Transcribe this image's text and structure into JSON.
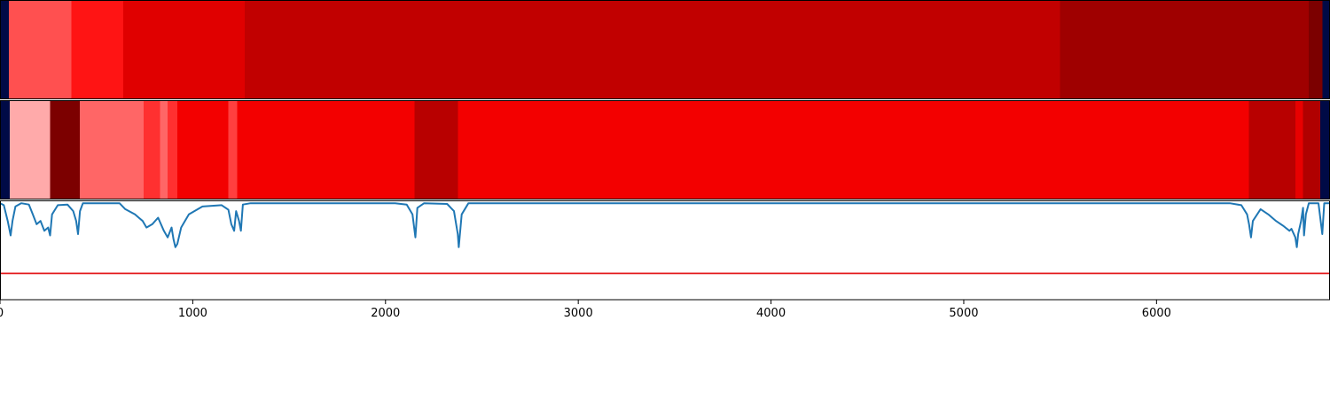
{
  "chart_data": {
    "type": "heatmap",
    "x_range": [
      0,
      6900
    ],
    "x_ticks": [
      {
        "value": 0,
        "label": "0"
      },
      {
        "value": 1000,
        "label": "1000"
      },
      {
        "value": 2000,
        "label": "2000"
      },
      {
        "value": 3000,
        "label": "3000"
      },
      {
        "value": 4000,
        "label": "4000"
      },
      {
        "value": 5000,
        "label": "5000"
      },
      {
        "value": 6000,
        "label": "6000"
      }
    ],
    "colors": {
      "background_edge": "#000a46",
      "line": "#1f77b4",
      "threshold": "#e31a1c",
      "frame": "#000000"
    },
    "tracks": [
      {
        "segments": [
          {
            "start": 0,
            "end": 45,
            "color": "#000a46"
          },
          {
            "start": 45,
            "end": 370,
            "color": "#ff5050"
          },
          {
            "start": 370,
            "end": 640,
            "color": "#ff1414"
          },
          {
            "start": 640,
            "end": 1270,
            "color": "#e00000"
          },
          {
            "start": 1270,
            "end": 5500,
            "color": "#c10000"
          },
          {
            "start": 5500,
            "end": 6790,
            "color": "#9f0000"
          },
          {
            "start": 6790,
            "end": 6860,
            "color": "#7c0000"
          },
          {
            "start": 6860,
            "end": 6900,
            "color": "#000a46"
          }
        ]
      },
      {
        "segments": [
          {
            "start": 0,
            "end": 50,
            "color": "#000a46"
          },
          {
            "start": 50,
            "end": 260,
            "color": "#ffaaaa"
          },
          {
            "start": 260,
            "end": 415,
            "color": "#7c0000"
          },
          {
            "start": 415,
            "end": 745,
            "color": "#ff6666"
          },
          {
            "start": 745,
            "end": 830,
            "color": "#ff3030"
          },
          {
            "start": 830,
            "end": 870,
            "color": "#ff6666"
          },
          {
            "start": 870,
            "end": 920,
            "color": "#ff3030"
          },
          {
            "start": 920,
            "end": 1185,
            "color": "#f30000"
          },
          {
            "start": 1185,
            "end": 1230,
            "color": "#ff3f3f"
          },
          {
            "start": 1230,
            "end": 2150,
            "color": "#f30000"
          },
          {
            "start": 2150,
            "end": 2375,
            "color": "#b80000"
          },
          {
            "start": 2375,
            "end": 6480,
            "color": "#f30000"
          },
          {
            "start": 6480,
            "end": 6720,
            "color": "#b80000"
          },
          {
            "start": 6720,
            "end": 6760,
            "color": "#e80000"
          },
          {
            "start": 6760,
            "end": 6850,
            "color": "#b00000"
          },
          {
            "start": 6850,
            "end": 6900,
            "color": "#000a46"
          }
        ]
      }
    ],
    "line_panel": {
      "y_range": [
        0,
        1.5
      ],
      "threshold": 0.4,
      "points": [
        [
          0,
          1.47
        ],
        [
          20,
          1.44
        ],
        [
          40,
          1.2
        ],
        [
          55,
          0.98
        ],
        [
          65,
          1.2
        ],
        [
          80,
          1.42
        ],
        [
          110,
          1.47
        ],
        [
          150,
          1.45
        ],
        [
          170,
          1.3
        ],
        [
          190,
          1.15
        ],
        [
          210,
          1.2
        ],
        [
          230,
          1.05
        ],
        [
          250,
          1.1
        ],
        [
          260,
          0.98
        ],
        [
          270,
          1.3
        ],
        [
          300,
          1.44
        ],
        [
          350,
          1.45
        ],
        [
          380,
          1.35
        ],
        [
          395,
          1.2
        ],
        [
          405,
          1.0
        ],
        [
          415,
          1.35
        ],
        [
          430,
          1.47
        ],
        [
          620,
          1.47
        ],
        [
          650,
          1.38
        ],
        [
          700,
          1.3
        ],
        [
          720,
          1.25
        ],
        [
          740,
          1.2
        ],
        [
          760,
          1.1
        ],
        [
          790,
          1.15
        ],
        [
          820,
          1.25
        ],
        [
          850,
          1.05
        ],
        [
          870,
          0.95
        ],
        [
          890,
          1.1
        ],
        [
          900,
          0.92
        ],
        [
          910,
          0.8
        ],
        [
          920,
          0.85
        ],
        [
          940,
          1.1
        ],
        [
          980,
          1.3
        ],
        [
          1050,
          1.42
        ],
        [
          1150,
          1.44
        ],
        [
          1185,
          1.37
        ],
        [
          1200,
          1.15
        ],
        [
          1215,
          1.05
        ],
        [
          1225,
          1.35
        ],
        [
          1240,
          1.2
        ],
        [
          1250,
          1.05
        ],
        [
          1260,
          1.45
        ],
        [
          1300,
          1.47
        ],
        [
          2050,
          1.47
        ],
        [
          2110,
          1.45
        ],
        [
          2140,
          1.3
        ],
        [
          2155,
          0.95
        ],
        [
          2165,
          1.4
        ],
        [
          2200,
          1.47
        ],
        [
          2320,
          1.46
        ],
        [
          2355,
          1.35
        ],
        [
          2375,
          1.0
        ],
        [
          2380,
          0.8
        ],
        [
          2395,
          1.3
        ],
        [
          2430,
          1.47
        ],
        [
          6380,
          1.47
        ],
        [
          6440,
          1.44
        ],
        [
          6470,
          1.3
        ],
        [
          6480,
          1.15
        ],
        [
          6490,
          0.95
        ],
        [
          6500,
          1.2
        ],
        [
          6540,
          1.38
        ],
        [
          6580,
          1.3
        ],
        [
          6620,
          1.2
        ],
        [
          6660,
          1.12
        ],
        [
          6690,
          1.05
        ],
        [
          6700,
          1.08
        ],
        [
          6720,
          0.95
        ],
        [
          6728,
          0.8
        ],
        [
          6735,
          1.0
        ],
        [
          6750,
          1.2
        ],
        [
          6760,
          1.4
        ],
        [
          6765,
          0.98
        ],
        [
          6775,
          1.3
        ],
        [
          6790,
          1.47
        ],
        [
          6840,
          1.47
        ],
        [
          6860,
          1.0
        ],
        [
          6870,
          1.47
        ],
        [
          6900,
          1.47
        ]
      ]
    }
  }
}
